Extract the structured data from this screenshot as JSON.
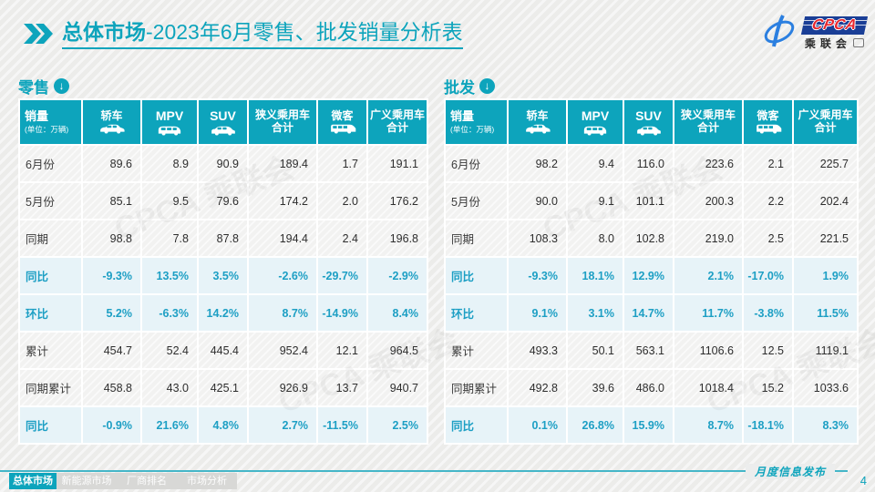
{
  "title": {
    "highlight": "总体市场",
    "rest": "-2023年6月零售、批发销量分析表"
  },
  "logo": {
    "acronym": "CPCA",
    "name": "乘联会"
  },
  "watermark": "CPCA 乘联会",
  "sections": [
    {
      "label": "零售",
      "columns": [
        {
          "label": "销量",
          "sub": "(单位：万辆)"
        },
        {
          "label": "轿车",
          "icon": "sedan"
        },
        {
          "label": "MPV",
          "icon": "mpv",
          "big": true
        },
        {
          "label": "SUV",
          "icon": "suv",
          "big": true
        },
        {
          "label": "狭义乘用车\n合计"
        },
        {
          "label": "微客",
          "icon": "van"
        },
        {
          "label": "广义乘用车\n合计"
        }
      ],
      "rows": [
        {
          "label": "6月份",
          "pct": false,
          "values": [
            "89.6",
            "8.9",
            "90.9",
            "189.4",
            "1.7",
            "191.1"
          ]
        },
        {
          "label": "5月份",
          "pct": false,
          "values": [
            "85.1",
            "9.5",
            "79.6",
            "174.2",
            "2.0",
            "176.2"
          ]
        },
        {
          "label": "同期",
          "pct": false,
          "values": [
            "98.8",
            "7.8",
            "87.8",
            "194.4",
            "2.4",
            "196.8"
          ]
        },
        {
          "label": "同比",
          "pct": true,
          "values": [
            "-9.3%",
            "13.5%",
            "3.5%",
            "-2.6%",
            "-29.7%",
            "-2.9%"
          ]
        },
        {
          "label": "环比",
          "pct": true,
          "values": [
            "5.2%",
            "-6.3%",
            "14.2%",
            "8.7%",
            "-14.9%",
            "8.4%"
          ]
        },
        {
          "label": "累计",
          "pct": false,
          "values": [
            "454.7",
            "52.4",
            "445.4",
            "952.4",
            "12.1",
            "964.5"
          ]
        },
        {
          "label": "同期累计",
          "pct": false,
          "values": [
            "458.8",
            "43.0",
            "425.1",
            "926.9",
            "13.7",
            "940.7"
          ]
        },
        {
          "label": "同比",
          "pct": true,
          "values": [
            "-0.9%",
            "21.6%",
            "4.8%",
            "2.7%",
            "-11.5%",
            "2.5%"
          ]
        }
      ]
    },
    {
      "label": "批发",
      "columns": [
        {
          "label": "销量",
          "sub": "(单位：万辆)"
        },
        {
          "label": "轿车",
          "icon": "sedan"
        },
        {
          "label": "MPV",
          "icon": "mpv",
          "big": true
        },
        {
          "label": "SUV",
          "icon": "suv",
          "big": true
        },
        {
          "label": "狭义乘用车\n合计"
        },
        {
          "label": "微客",
          "icon": "van"
        },
        {
          "label": "广义乘用车\n合计"
        }
      ],
      "rows": [
        {
          "label": "6月份",
          "pct": false,
          "values": [
            "98.2",
            "9.4",
            "116.0",
            "223.6",
            "2.1",
            "225.7"
          ]
        },
        {
          "label": "5月份",
          "pct": false,
          "values": [
            "90.0",
            "9.1",
            "101.1",
            "200.3",
            "2.2",
            "202.4"
          ]
        },
        {
          "label": "同期",
          "pct": false,
          "values": [
            "108.3",
            "8.0",
            "102.8",
            "219.0",
            "2.5",
            "221.5"
          ]
        },
        {
          "label": "同比",
          "pct": true,
          "values": [
            "-9.3%",
            "18.1%",
            "12.9%",
            "2.1%",
            "-17.0%",
            "1.9%"
          ]
        },
        {
          "label": "环比",
          "pct": true,
          "values": [
            "9.1%",
            "3.1%",
            "14.7%",
            "11.7%",
            "-3.8%",
            "11.5%"
          ]
        },
        {
          "label": "累计",
          "pct": false,
          "values": [
            "493.3",
            "50.1",
            "563.1",
            "1106.6",
            "12.5",
            "1119.1"
          ]
        },
        {
          "label": "同期累计",
          "pct": false,
          "values": [
            "492.8",
            "39.6",
            "486.0",
            "1018.4",
            "15.2",
            "1033.6"
          ]
        },
        {
          "label": "同比",
          "pct": true,
          "values": [
            "0.1%",
            "26.8%",
            "15.9%",
            "8.7%",
            "-18.1%",
            "8.3%"
          ]
        }
      ]
    }
  ],
  "footer": {
    "tabs": [
      {
        "label": "总体市场",
        "active": true
      },
      {
        "label": "新能源市场",
        "active": false
      },
      {
        "label": "厂商排名",
        "active": false
      },
      {
        "label": "市场分析",
        "active": false
      }
    ],
    "release_label": "月度信息发布",
    "page": "4"
  },
  "colors": {
    "accent": "#0da4bc",
    "pct_text": "#1d9fc4",
    "row_highlight": "#e7f3f8",
    "tab_inactive": "#d8d8d6",
    "rule": "#45b6c8",
    "logo_blue": "#1a3e96",
    "logo_red": "#e8262d"
  }
}
